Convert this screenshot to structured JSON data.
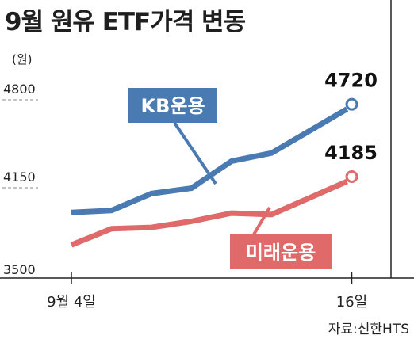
{
  "title": "9월 원유 ETF가격 변동",
  "source": "자료:신한HTS",
  "colors": {
    "kb": "#4a7ab2",
    "mirae": "#e06a6a",
    "axis": "#222222",
    "grid": "#888888"
  },
  "chart_data": {
    "type": "line",
    "title": "9월 원유 ETF가격 변동",
    "ylabel": "(원)",
    "xlabel": "",
    "y_ticks": [
      3500,
      4150,
      4800
    ],
    "ylim": [
      3500,
      4800
    ],
    "x_tick_labels": [
      {
        "index": 0,
        "label": "9월 4일"
      },
      {
        "index": 7,
        "label": "16일"
      }
    ],
    "grid": "dashed y-ticks",
    "series": [
      {
        "name": "KB운용",
        "color": "#4a7ab2",
        "values": [
          3920,
          3935,
          4060,
          4100,
          4300,
          4360,
          4720
        ],
        "end_label": "4720",
        "x_index": [
          0,
          1,
          2,
          3,
          4,
          5,
          7
        ]
      },
      {
        "name": "미래운용",
        "color": "#e06a6a",
        "values": [
          3680,
          3800,
          3810,
          3855,
          3915,
          3905,
          4185
        ],
        "end_label": "4185",
        "x_index": [
          0,
          1,
          2,
          3,
          4,
          5,
          7
        ]
      }
    ]
  }
}
